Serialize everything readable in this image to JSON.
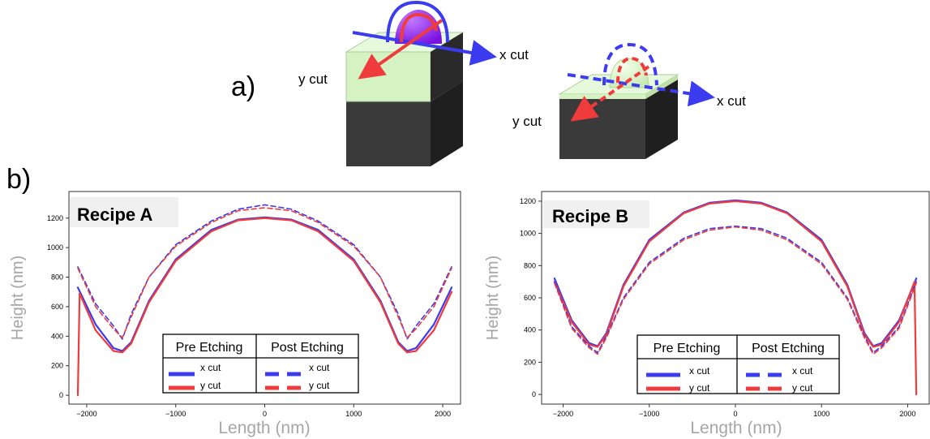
{
  "panel_a": {
    "label": "a)",
    "block1": {
      "x_label": "x cut",
      "y_label": "y cut"
    },
    "block2": {
      "x_label": "x cut",
      "y_label": "y cut"
    }
  },
  "panel_b": {
    "label": "b)"
  },
  "colors": {
    "blue": "#3b3bef",
    "red": "#ef3b3b",
    "purple": "#8a17e6",
    "green": "#d8f5c6",
    "dark": "#3c3c3c",
    "frame": "#333333",
    "axis_label": "#a6a6a6",
    "title_bg": "#f0f0f0"
  },
  "legend_text": {
    "pre": "Pre Etching",
    "post": "Post Etching",
    "x": "x cut",
    "y": "y cut"
  },
  "chart_data": [
    {
      "type": "line",
      "title": "Recipe A",
      "xlabel": "Length (nm)",
      "ylabel": "Height (nm)",
      "xlim": [
        -2200,
        2200
      ],
      "ylim": [
        -60,
        1380
      ],
      "xticks": [
        -2000,
        -1000,
        0,
        1000,
        2000
      ],
      "xtick_labels": [
        "−2000",
        "−1000",
        "0",
        "1000",
        "2000"
      ],
      "yticks": [
        0,
        200,
        400,
        600,
        800,
        1000,
        1200
      ],
      "ytick_labels": [
        "0",
        "200",
        "400",
        "600",
        "800",
        "1000",
        "1200"
      ],
      "legend": "bottom-center",
      "series": [
        {
          "name": "x cut",
          "group": "Pre Etching",
          "color": "#3b3bef",
          "dash": "solid",
          "x": [
            -2100,
            -1900,
            -1700,
            -1600,
            -1500,
            -1300,
            -1000,
            -600,
            -300,
            0,
            300,
            600,
            1000,
            1300,
            1500,
            1600,
            1700,
            1900,
            2100
          ],
          "y": [
            730,
            480,
            320,
            300,
            360,
            640,
            920,
            1120,
            1190,
            1205,
            1190,
            1120,
            920,
            640,
            360,
            300,
            320,
            480,
            730
          ]
        },
        {
          "name": "y cut",
          "group": "Pre Etching",
          "color": "#ef3b3b",
          "dash": "solid",
          "x": [
            -2100,
            -2080,
            -1900,
            -1700,
            -1600,
            -1500,
            -1300,
            -1000,
            -600,
            -300,
            0,
            300,
            600,
            1000,
            1300,
            1500,
            1600,
            1700,
            1900,
            2100
          ],
          "y": [
            0,
            690,
            440,
            300,
            290,
            350,
            630,
            910,
            1110,
            1185,
            1200,
            1185,
            1110,
            910,
            630,
            350,
            290,
            300,
            440,
            700
          ]
        },
        {
          "name": "x cut",
          "group": "Post Etching",
          "color": "#3b3bef",
          "dash": "dashed",
          "x": [
            -2100,
            -1900,
            -1700,
            -1600,
            -1500,
            -1300,
            -1000,
            -600,
            -300,
            0,
            300,
            600,
            1000,
            1300,
            1500,
            1600,
            1700,
            1900,
            2100
          ],
          "y": [
            870,
            620,
            470,
            380,
            550,
            800,
            1020,
            1180,
            1260,
            1290,
            1260,
            1180,
            1020,
            800,
            550,
            380,
            470,
            620,
            870
          ]
        },
        {
          "name": "y cut",
          "group": "Post Etching",
          "color": "#ef3b3b",
          "dash": "dashed",
          "x": [
            -2100,
            -1900,
            -1700,
            -1600,
            -1500,
            -1300,
            -1000,
            -600,
            -300,
            0,
            300,
            600,
            1000,
            1300,
            1500,
            1600,
            1700,
            1900,
            2100
          ],
          "y": [
            860,
            600,
            450,
            390,
            530,
            800,
            1010,
            1170,
            1250,
            1270,
            1250,
            1170,
            1010,
            800,
            530,
            390,
            450,
            600,
            860
          ]
        }
      ]
    },
    {
      "type": "line",
      "title": "Recipe B",
      "xlabel": "Length (nm)",
      "ylabel": "Height (nm)",
      "xlim": [
        -2250,
        2250
      ],
      "ylim": [
        -60,
        1260
      ],
      "xticks": [
        -2000,
        -1000,
        0,
        1000,
        2000
      ],
      "xtick_labels": [
        "−2000",
        "−1000",
        "0",
        "1000",
        "2000"
      ],
      "yticks": [
        0,
        200,
        400,
        600,
        800,
        1000,
        1200
      ],
      "ytick_labels": [
        "0",
        "200",
        "400",
        "600",
        "800",
        "1000",
        "1200"
      ],
      "legend": "bottom-center",
      "series": [
        {
          "name": "x cut",
          "group": "Pre Etching",
          "color": "#3b3bef",
          "dash": "solid",
          "x": [
            -2100,
            -1900,
            -1700,
            -1600,
            -1500,
            -1300,
            -1000,
            -600,
            -300,
            0,
            300,
            600,
            1000,
            1300,
            1500,
            1600,
            1700,
            1900,
            2100
          ],
          "y": [
            720,
            460,
            320,
            300,
            380,
            680,
            960,
            1130,
            1190,
            1205,
            1190,
            1130,
            960,
            680,
            380,
            300,
            320,
            460,
            720
          ]
        },
        {
          "name": "y cut",
          "group": "Pre Etching",
          "color": "#ef3b3b",
          "dash": "solid",
          "x": [
            -2100,
            -1900,
            -1700,
            -1600,
            -1500,
            -1300,
            -1000,
            -600,
            -300,
            0,
            300,
            600,
            1000,
            1300,
            1500,
            1600,
            1700,
            1900,
            2080,
            2100
          ],
          "y": [
            700,
            450,
            310,
            295,
            370,
            670,
            950,
            1125,
            1185,
            1200,
            1185,
            1125,
            950,
            670,
            370,
            295,
            310,
            450,
            700,
            0
          ]
        },
        {
          "name": "x cut",
          "group": "Post Etching",
          "color": "#3b3bef",
          "dash": "dashed",
          "x": [
            -2100,
            -1900,
            -1700,
            -1600,
            -1500,
            -1300,
            -1000,
            -600,
            -300,
            0,
            300,
            600,
            1000,
            1300,
            1500,
            1600,
            1700,
            1900,
            2100
          ],
          "y": [
            700,
            420,
            300,
            260,
            360,
            600,
            820,
            970,
            1030,
            1045,
            1030,
            970,
            820,
            600,
            360,
            260,
            300,
            420,
            700
          ]
        },
        {
          "name": "y cut",
          "group": "Post Etching",
          "color": "#ef3b3b",
          "dash": "dashed",
          "x": [
            -2100,
            -1900,
            -1700,
            -1600,
            -1500,
            -1300,
            -1000,
            -600,
            -300,
            0,
            300,
            600,
            1000,
            1300,
            1500,
            1600,
            1700,
            1900,
            2100
          ],
          "y": [
            690,
            410,
            290,
            250,
            350,
            590,
            810,
            960,
            1020,
            1040,
            1020,
            960,
            810,
            590,
            350,
            250,
            290,
            410,
            690
          ]
        }
      ]
    }
  ]
}
